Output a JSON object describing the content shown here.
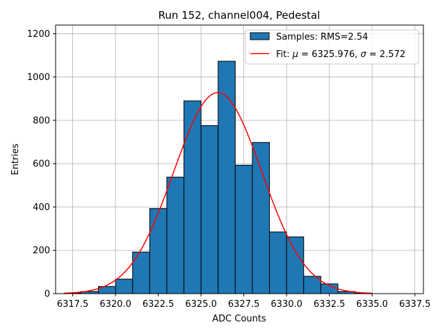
{
  "chart_data": {
    "type": "bar",
    "title": "Run 152, channel004, Pedestal",
    "xlabel": "ADC Counts",
    "ylabel": "Entries",
    "xlim": [
      6316.5,
      6338.0
    ],
    "ylim": [
      0,
      1240
    ],
    "grid": true,
    "x_ticks": [
      6317.5,
      6320.0,
      6322.5,
      6325.0,
      6327.5,
      6330.0,
      6332.5,
      6335.0,
      6337.5
    ],
    "x_tick_labels": [
      "6317.5",
      "6320.0",
      "6322.5",
      "6325.0",
      "6327.5",
      "6330.0",
      "6332.5",
      "6335.0",
      "6337.5"
    ],
    "y_ticks": [
      0,
      200,
      400,
      600,
      800,
      1000,
      1200
    ],
    "y_tick_labels": [
      "0",
      "200",
      "400",
      "600",
      "800",
      "1000",
      "1200"
    ],
    "histogram": {
      "name": "Samples: RMS=2.54",
      "color": "#1f77b4",
      "edge_color": "#000000",
      "bins": [
        {
          "x0": 6317.0,
          "x1": 6318.0,
          "count": 3
        },
        {
          "x0": 6318.0,
          "x1": 6319.0,
          "count": 10
        },
        {
          "x0": 6319.0,
          "x1": 6320.0,
          "count": 33
        },
        {
          "x0": 6320.0,
          "x1": 6321.0,
          "count": 67
        },
        {
          "x0": 6321.0,
          "x1": 6322.0,
          "count": 192
        },
        {
          "x0": 6322.0,
          "x1": 6323.0,
          "count": 393
        },
        {
          "x0": 6323.0,
          "x1": 6324.0,
          "count": 538
        },
        {
          "x0": 6324.0,
          "x1": 6325.0,
          "count": 890
        },
        {
          "x0": 6325.0,
          "x1": 6326.0,
          "count": 776
        },
        {
          "x0": 6326.0,
          "x1": 6327.0,
          "count": 1073
        },
        {
          "x0": 6327.0,
          "x1": 6328.0,
          "count": 593
        },
        {
          "x0": 6328.0,
          "x1": 6329.0,
          "count": 698
        },
        {
          "x0": 6329.0,
          "x1": 6330.0,
          "count": 285
        },
        {
          "x0": 6330.0,
          "x1": 6331.0,
          "count": 262
        },
        {
          "x0": 6331.0,
          "x1": 6332.0,
          "count": 80
        },
        {
          "x0": 6332.0,
          "x1": 6333.0,
          "count": 45
        },
        {
          "x0": 6333.0,
          "x1": 6334.0,
          "count": 10
        },
        {
          "x0": 6334.0,
          "x1": 6335.0,
          "count": 2
        }
      ]
    },
    "fit": {
      "type": "gaussian",
      "mu": 6325.976,
      "sigma": 2.572,
      "amplitude": 928,
      "x_range": [
        6317.0,
        6335.0
      ],
      "color": "#ff0000",
      "legend_prefix": "Fit: ",
      "legend_mu_symbol": "μ",
      "legend_mu_value": " = 6325.976, ",
      "legend_sigma_symbol": "σ",
      "legend_sigma_value": " = 2.572"
    },
    "legend_position": "top-right"
  }
}
